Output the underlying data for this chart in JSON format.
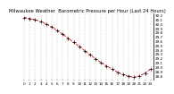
{
  "title": "Milwaukee Weather  Barometric Pressure per Hour (Last 24 Hours)",
  "hours": [
    0,
    1,
    2,
    3,
    4,
    5,
    6,
    7,
    8,
    9,
    10,
    11,
    12,
    13,
    14,
    15,
    16,
    17,
    18,
    19,
    20,
    21,
    22,
    23
  ],
  "pressure": [
    30.15,
    30.13,
    30.1,
    30.05,
    30.0,
    29.93,
    29.85,
    29.76,
    29.67,
    29.57,
    29.48,
    29.38,
    29.28,
    29.19,
    29.1,
    29.02,
    28.95,
    28.88,
    28.82,
    28.78,
    28.76,
    28.79,
    28.86,
    28.95
  ],
  "line_color": "#dd0000",
  "marker_color": "#000000",
  "bg_color": "#ffffff",
  "grid_color": "#999999",
  "ylim": [
    28.7,
    30.25
  ],
  "ytick_min": 28.8,
  "ytick_max": 30.2,
  "ytick_step": 0.1,
  "title_fontsize": 3.8,
  "tick_fontsize": 3.0,
  "linewidth": 0.6,
  "marker_size": 3.0
}
